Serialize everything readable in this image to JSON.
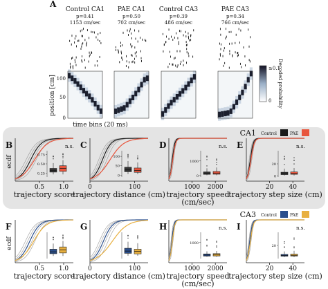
{
  "panel_A": {
    "letter": "A",
    "ylabel": "position [cm]",
    "xlabel": "time bins (20 ms)",
    "yticks": [
      "0",
      "50",
      "100"
    ],
    "colorbar": {
      "label": "Decoded probability",
      "top": "≥0.1",
      "bottom": "0"
    },
    "examples": [
      {
        "title": "Control CA1",
        "p": "p=0.41",
        "speed": "1153 cm/sec",
        "ticks": 60,
        "trace": [
          [
            0.05,
            0.9
          ],
          [
            0.2,
            0.8
          ],
          [
            0.35,
            0.68
          ],
          [
            0.5,
            0.55
          ],
          [
            0.65,
            0.45
          ],
          [
            0.8,
            0.3
          ],
          [
            0.95,
            0.15
          ]
        ]
      },
      {
        "title": "PAE CA1",
        "p": "p=0.50",
        "speed": "702 cm/sec",
        "ticks": 50,
        "trace": [
          [
            0.05,
            0.15
          ],
          [
            0.3,
            0.22
          ],
          [
            0.5,
            0.4
          ],
          [
            0.7,
            0.6
          ],
          [
            0.9,
            0.85
          ]
        ]
      },
      {
        "title": "Control CA3",
        "p": "p=0.39",
        "speed": "486 cm/sec",
        "ticks": 55,
        "trace": [
          [
            0.05,
            0.1
          ],
          [
            0.25,
            0.3
          ],
          [
            0.45,
            0.45
          ],
          [
            0.65,
            0.6
          ],
          [
            0.85,
            0.78
          ],
          [
            0.95,
            0.88
          ]
        ]
      },
      {
        "title": "PAE CA3",
        "p": "p=0.34",
        "speed": "766 cm/sec",
        "ticks": 45,
        "trace": [
          [
            0.05,
            0.08
          ],
          [
            0.35,
            0.12
          ],
          [
            0.55,
            0.35
          ],
          [
            0.75,
            0.6
          ],
          [
            0.95,
            0.95
          ]
        ]
      }
    ]
  },
  "rows": [
    {
      "region": "CA1",
      "legend": {
        "control": "Control",
        "pae": "PAE"
      },
      "colors": {
        "control": "#1a1a1a",
        "pae": "#e8563e",
        "box_control": "#333333",
        "box_pae": "#e8563e",
        "outline": "#999999"
      },
      "ecdf_ylabel": "ecdf",
      "panels": [
        {
          "letter": "B",
          "xlabel": "trajectory score",
          "xticks": [
            "0.5",
            "1.0"
          ],
          "xlim": [
            0.0,
            1.2
          ],
          "annot": "n.s.",
          "box": {
            "yticks": [
              "0.25",
              "0.50",
              "0.75"
            ],
            "ylim": [
              0.15,
              0.85
            ],
            "control": [
              0.22,
              0.28,
              0.32,
              0.38,
              0.52
            ],
            "pae": [
              0.22,
              0.3,
              0.38,
              0.45,
              0.6
            ]
          },
          "ecdf": {
            "control_mid": 0.32,
            "pae_mid": 0.4
          }
        },
        {
          "letter": "C",
          "xlabel": "trajectory distance (cm)",
          "xticks": [
            "0",
            "100"
          ],
          "xlim": [
            0,
            130
          ],
          "annot": "",
          "box": {
            "yticks": [
              "0",
              "50",
              "100"
            ],
            "ylim": [
              -10,
              130
            ],
            "control": [
              5,
              18,
              28,
              42,
              75
            ],
            "pae": [
              5,
              15,
              25,
              38,
              68
            ]
          },
          "ecdf": {
            "control_mid": 28,
            "pae_mid": 45
          }
        },
        {
          "letter": "D",
          "xlabel": "trajectory speed\n(cm/sec)",
          "xticks": [
            "1000",
            "2000"
          ],
          "xlim": [
            0,
            2500
          ],
          "annot": "n.s.",
          "box": {
            "yticks": [
              "0",
              "1000"
            ],
            "ylim": [
              -100,
              1700
            ],
            "control": [
              20,
              80,
              150,
              250,
              500
            ],
            "pae": [
              20,
              90,
              170,
              280,
              550
            ]
          },
          "ecdf": {
            "control_mid": 150,
            "pae_mid": 170
          }
        },
        {
          "letter": "E",
          "xlabel": "trajectory step size (cm)",
          "xticks": [
            "20",
            "40"
          ],
          "xlim": [
            0,
            50
          ],
          "annot": "n.s.",
          "box": {
            "yticks": [
              "0",
              "20"
            ],
            "ylim": [
              -2,
              42
            ],
            "control": [
              0.5,
              2,
              3.5,
              6,
              12
            ],
            "pae": [
              0.5,
              2.5,
              4,
              6.5,
              13
            ]
          },
          "ecdf": {
            "control_mid": 3.5,
            "pae_mid": 4
          }
        }
      ]
    },
    {
      "region": "CA3",
      "legend": {
        "control": "Control",
        "pae": "PAE"
      },
      "colors": {
        "control": "#2b4f8c",
        "pae": "#e8b040",
        "box_control": "#2b4f8c",
        "box_pae": "#e8b040",
        "outline": "#999999"
      },
      "ecdf_ylabel": "ecdf",
      "panels": [
        {
          "letter": "F",
          "xlabel": "trajectory score",
          "xticks": [
            "0.5",
            "1.0"
          ],
          "xlim": [
            0.0,
            1.2
          ],
          "annot": "",
          "box": {
            "yticks": [],
            "ylim": [
              0.15,
              0.85
            ],
            "control": [
              0.22,
              0.28,
              0.33,
              0.4,
              0.55
            ],
            "pae": [
              0.22,
              0.3,
              0.38,
              0.46,
              0.62
            ]
          },
          "ecdf": {
            "control_mid": 0.3,
            "pae_mid": 0.38
          }
        },
        {
          "letter": "G",
          "xlabel": "trajectory distance (cm)",
          "xticks": [
            "0",
            "100"
          ],
          "xlim": [
            0,
            130
          ],
          "annot": "",
          "box": {
            "yticks": [],
            "ylim": [
              -10,
              130
            ],
            "control": [
              5,
              18,
              30,
              45,
              80
            ],
            "pae": [
              5,
              15,
              28,
              40,
              72
            ]
          },
          "ecdf": {
            "control_mid": 30,
            "pae_mid": 50
          }
        },
        {
          "letter": "H",
          "xlabel": "trajectory speed\n(cm/sec)",
          "xticks": [
            "1000",
            "2000"
          ],
          "xlim": [
            0,
            2500
          ],
          "annot": "n.s.",
          "box": {
            "yticks": [
              "1000"
            ],
            "ylim": [
              -100,
              1700
            ],
            "control": [
              20,
              70,
              140,
              220,
              400
            ],
            "pae": [
              20,
              80,
              150,
              240,
              420
            ]
          },
          "ecdf": {
            "control_mid": 130,
            "pae_mid": 150
          }
        },
        {
          "letter": "I",
          "xlabel": "trajectory step size (cm)",
          "xticks": [
            "20",
            "40"
          ],
          "xlim": [
            0,
            50
          ],
          "annot": "n.s.",
          "box": {
            "yticks": [
              "20"
            ],
            "ylim": [
              -2,
              42
            ],
            "control": [
              0.5,
              2,
              3,
              5,
              10
            ],
            "pae": [
              0.5,
              2.2,
              3.5,
              5.5,
              11
            ]
          },
          "ecdf": {
            "control_mid": 3,
            "pae_mid": 3.5
          }
        }
      ]
    }
  ]
}
